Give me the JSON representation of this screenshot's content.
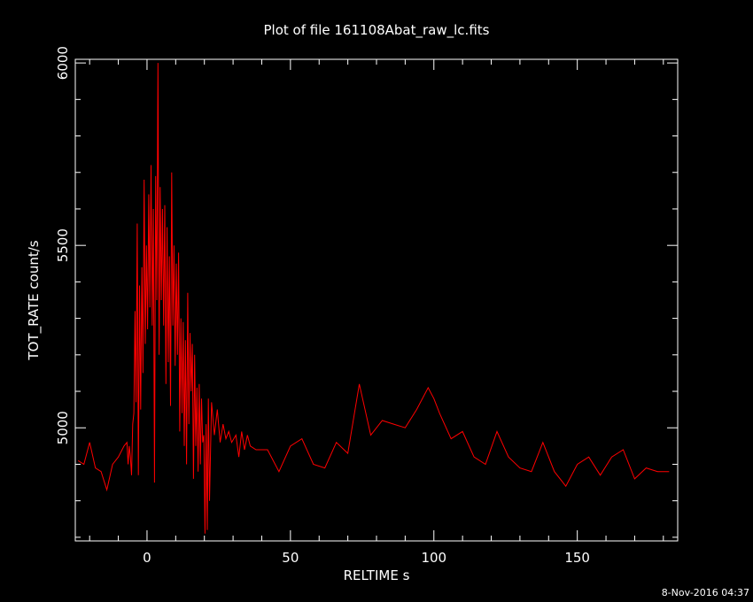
{
  "chart_data": {
    "type": "line",
    "title": "Plot of file 161108Abat_raw_lc.fits",
    "xlabel": "RELTIME  s",
    "ylabel": "TOT_RATE  count/s",
    "footer": "8-Nov-2016 04:37",
    "xlim": [
      -25,
      185
    ],
    "ylim": [
      4690,
      6010
    ],
    "xticks": [
      0,
      50,
      100,
      150
    ],
    "yticks": [
      5000,
      5500,
      6000
    ],
    "x_minor_step": 10,
    "y_minor_step": 100,
    "grid": false,
    "colors": {
      "background": "#000000",
      "axes": "#ffffff",
      "series": "#ff0000"
    },
    "series": [
      {
        "x": [
          -24.0,
          -22.0,
          -20.0,
          -18.0,
          -16.0,
          -14.0,
          -12.0,
          -10.0,
          -8.0,
          -7.0,
          -6.6,
          -6.2,
          -5.8,
          -5.4,
          -5.0,
          -4.6,
          -4.2,
          -3.8,
          -3.4,
          -3.0,
          -2.6,
          -2.2,
          -1.8,
          -1.4,
          -1.0,
          -0.6,
          -0.2,
          0.2,
          0.6,
          1.0,
          1.4,
          1.8,
          2.2,
          2.6,
          3.0,
          3.4,
          3.8,
          4.2,
          4.6,
          5.0,
          5.4,
          5.8,
          6.2,
          6.6,
          7.0,
          7.4,
          7.8,
          8.2,
          8.6,
          9.0,
          9.4,
          9.8,
          10.2,
          10.6,
          11.0,
          11.4,
          11.8,
          12.2,
          12.6,
          13.0,
          13.4,
          13.8,
          14.2,
          14.6,
          15.0,
          15.4,
          15.8,
          16.2,
          16.6,
          17.0,
          17.4,
          17.8,
          18.2,
          18.6,
          19.0,
          19.4,
          19.8,
          20.2,
          20.6,
          21.0,
          21.4,
          21.8,
          22.5,
          23.5,
          24.5,
          25.5,
          26.5,
          27.5,
          28.5,
          29.5,
          31.0,
          32.0,
          33.0,
          34.0,
          35.0,
          36.0,
          38.0,
          42.0,
          46.0,
          50.0,
          54.0,
          58.0,
          62.0,
          66.0,
          70.0,
          74.0,
          78.0,
          82.0,
          86.0,
          90.0,
          94.0,
          98.0,
          100.0,
          102.0,
          106.0,
          110.0,
          114.0,
          118.0,
          122.0,
          126.0,
          130.0,
          134.0,
          138.0,
          142.0,
          146.0,
          150.0,
          154.0,
          158.0,
          162.0,
          166.0,
          170.0,
          174.0,
          178.0,
          182.0
        ],
        "y": [
          4910,
          4900,
          4960,
          4890,
          4880,
          4830,
          4900,
          4920,
          4950,
          4960,
          4900,
          4950,
          4920,
          4870,
          5010,
          5040,
          5320,
          5070,
          5560,
          4870,
          5390,
          5050,
          5440,
          5150,
          5680,
          5230,
          5500,
          5270,
          5640,
          5330,
          5720,
          5280,
          5600,
          4850,
          5690,
          5350,
          6000,
          5200,
          5660,
          5350,
          5600,
          5280,
          5610,
          5120,
          5550,
          5180,
          5470,
          5060,
          5700,
          5280,
          5500,
          5170,
          5450,
          5200,
          5480,
          4990,
          5300,
          5040,
          5290,
          4950,
          5240,
          4900,
          5370,
          5010,
          5260,
          5100,
          5230,
          4860,
          5200,
          4950,
          5110,
          4880,
          5120,
          4900,
          5080,
          4960,
          4980,
          4710,
          5010,
          4720,
          5080,
          4800,
          5070,
          4980,
          5050,
          4960,
          5010,
          4970,
          4990,
          4960,
          4980,
          4920,
          4990,
          4940,
          4980,
          4950,
          4940,
          4940,
          4880,
          4950,
          4970,
          4900,
          4890,
          4960,
          4930,
          5120,
          4980,
          5020,
          5010,
          5000,
          5050,
          5110,
          5080,
          5040,
          4970,
          4990,
          4920,
          4900,
          4990,
          4920,
          4890,
          4880,
          4960,
          4880,
          4840,
          4900,
          4920,
          4870,
          4920,
          4940,
          4860,
          4890,
          4880,
          4880
        ]
      }
    ]
  }
}
